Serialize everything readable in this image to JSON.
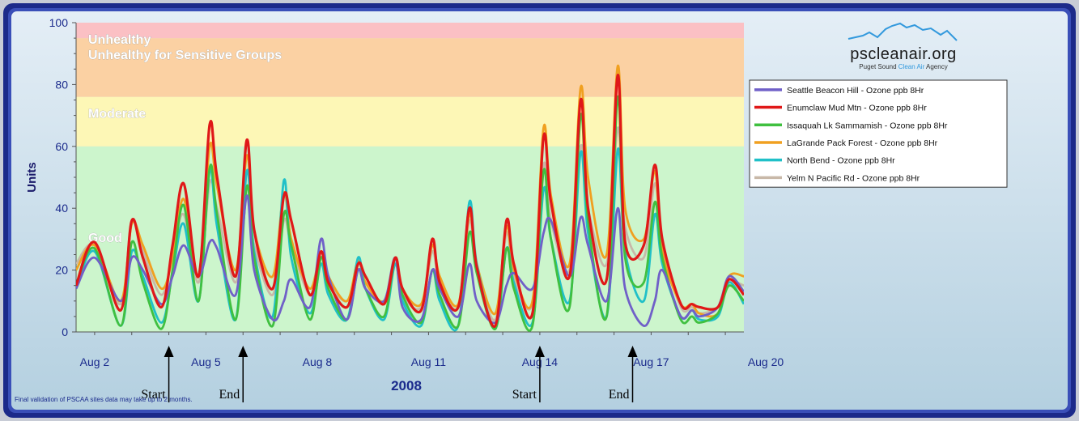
{
  "footer_note": "Final validation of PSCAA sites data may take up to 2 months.",
  "logo": {
    "name": "pscleanair.org",
    "tagline_parts": [
      "Puget Sound ",
      "Clean Air",
      " Agency"
    ]
  },
  "colors": {
    "accent_blue": "#1a2a8c",
    "logo_blue": "#3399dd",
    "text_dark": "#1a1a6a"
  },
  "annotations": [
    {
      "label": "Start",
      "date": "Aug 4"
    },
    {
      "label": "End",
      "date": "Aug 6"
    },
    {
      "label": "Start",
      "date": "Aug 14"
    },
    {
      "label": "End",
      "date": "Aug 16.5"
    }
  ],
  "chart_data": {
    "type": "line",
    "title": "",
    "xlabel": "2008",
    "ylabel": "Units",
    "x_ticks": [
      "Aug 2",
      "Aug 5",
      "Aug 8",
      "Aug 11",
      "Aug 14",
      "Aug 17",
      "Aug 20"
    ],
    "xlim": [
      "Aug 1.5",
      "Aug 19.5"
    ],
    "ylim": [
      0,
      100
    ],
    "y_ticks": [
      0,
      20,
      40,
      60,
      80,
      100
    ],
    "grid": false,
    "legend_position": "right",
    "bands": [
      {
        "label": "Good",
        "from": 0,
        "to": 60,
        "color": "#ccf5cc"
      },
      {
        "label": "Moderate",
        "from": 60,
        "to": 76,
        "color": "#fdf7b6"
      },
      {
        "label": "Unhealthy for Sensitive Groups",
        "from": 76,
        "to": 95,
        "color": "#fbd1a3"
      },
      {
        "label": "Unhealthy",
        "from": 95,
        "to": 100,
        "color": "#fbc0c4"
      }
    ],
    "x_days": [
      1.5,
      2.0,
      2.7,
      3.0,
      3.3,
      3.8,
      4.1,
      4.4,
      4.8,
      5.1,
      5.3,
      5.8,
      6.1,
      6.3,
      6.8,
      7.1,
      7.3,
      7.8,
      8.1,
      8.3,
      8.8,
      9.1,
      9.3,
      9.8,
      10.1,
      10.3,
      10.8,
      11.1,
      11.3,
      11.8,
      12.1,
      12.3,
      12.8,
      13.1,
      13.3,
      13.8,
      14.1,
      14.3,
      14.8,
      15.1,
      15.3,
      15.8,
      16.1,
      16.3,
      16.8,
      17.1,
      17.3,
      17.8,
      18.1,
      18.3,
      18.8,
      19.1,
      19.5
    ],
    "series": [
      {
        "name": "Seattle Beacon Hill - Ozone  ppb  8Hr",
        "color": "#7060c8",
        "values": [
          14,
          24,
          10,
          24,
          20,
          9,
          18,
          28,
          18,
          29,
          27,
          12,
          44,
          20,
          4,
          10,
          17,
          8,
          30,
          18,
          4,
          20,
          14,
          10,
          24,
          8,
          4,
          20,
          14,
          5,
          22,
          10,
          3,
          15,
          19,
          14,
          32,
          36,
          18,
          37,
          28,
          10,
          40,
          14,
          2,
          10,
          20,
          5,
          7,
          5,
          8,
          18,
          13
        ]
      },
      {
        "name": "Enumclaw Mud Mtn - Ozone  ppb  8Hr",
        "color": "#e01818",
        "values": [
          15,
          29,
          7,
          36,
          24,
          8,
          28,
          48,
          18,
          67,
          50,
          18,
          62,
          33,
          14,
          44,
          36,
          12,
          26,
          16,
          8,
          22,
          18,
          9,
          24,
          14,
          7,
          30,
          16,
          8,
          40,
          21,
          2,
          36,
          22,
          6,
          63,
          42,
          18,
          75,
          40,
          17,
          83,
          29,
          28,
          54,
          30,
          9,
          9,
          8,
          8,
          17,
          12
        ]
      },
      {
        "name": "Issaquah Lk Sammamish - Ozone  ppb  8Hr",
        "color": "#40c040",
        "values": [
          15,
          27,
          2,
          29,
          16,
          1,
          20,
          41,
          10,
          53,
          38,
          4,
          47,
          24,
          2,
          38,
          28,
          4,
          24,
          14,
          4,
          20,
          14,
          5,
          24,
          12,
          3,
          20,
          12,
          2,
          32,
          19,
          1,
          27,
          14,
          2,
          52,
          30,
          8,
          70,
          36,
          5,
          76,
          24,
          16,
          42,
          24,
          4,
          5,
          3,
          6,
          15,
          10
        ]
      },
      {
        "name": "LaGrande Pack Forest - Ozone  ppb  8Hr",
        "color": "#f0a020",
        "values": [
          20,
          28,
          10,
          35,
          28,
          14,
          24,
          43,
          18,
          60,
          47,
          20,
          57,
          33,
          18,
          45,
          30,
          14,
          26,
          18,
          10,
          23,
          16,
          10,
          24,
          14,
          9,
          28,
          18,
          9,
          38,
          22,
          6,
          34,
          20,
          10,
          66,
          44,
          22,
          79,
          50,
          25,
          86,
          40,
          30,
          52,
          26,
          9,
          9,
          6,
          6,
          18,
          18
        ]
      },
      {
        "name": "North Bend - Ozone  ppb  8Hr",
        "color": "#20c0c8",
        "values": [
          14,
          26,
          2,
          26,
          18,
          3,
          19,
          35,
          10,
          52,
          34,
          4,
          52,
          26,
          5,
          49,
          24,
          6,
          22,
          12,
          4,
          24,
          14,
          4,
          22,
          10,
          2,
          20,
          10,
          2,
          42,
          22,
          1,
          27,
          16,
          3,
          46,
          30,
          10,
          58,
          32,
          5,
          59,
          26,
          10,
          38,
          22,
          5,
          7,
          4,
          5,
          16,
          9
        ]
      },
      {
        "name": "Yelm N Pacific Rd - Ozone  ppb  8Hr",
        "color": "#c8b8a8",
        "values": [
          22,
          28,
          9,
          36,
          26,
          12,
          25,
          38,
          16,
          48,
          40,
          16,
          44,
          28,
          12,
          36,
          28,
          12,
          22,
          16,
          10,
          22,
          16,
          9,
          22,
          12,
          8,
          26,
          16,
          8,
          36,
          20,
          4,
          32,
          18,
          9,
          54,
          36,
          20,
          60,
          40,
          22,
          66,
          34,
          24,
          48,
          28,
          8,
          8,
          6,
          8,
          16,
          15
        ]
      }
    ]
  }
}
